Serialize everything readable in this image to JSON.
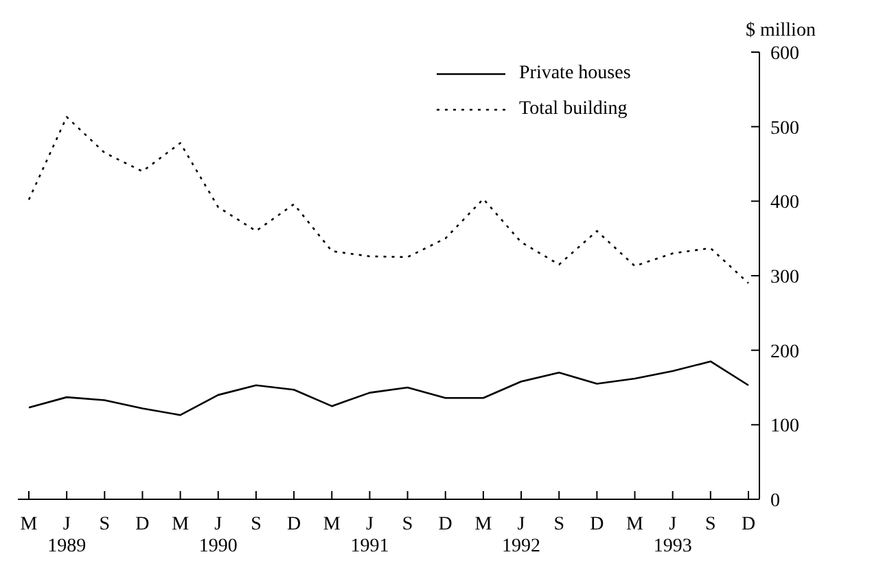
{
  "chart_data": {
    "type": "line",
    "ylabel": "$ million",
    "categories": [
      "M",
      "J\n1989",
      "S",
      "D",
      "M",
      "J\n1990",
      "S",
      "D",
      "M",
      "J\n1991",
      "S",
      "D",
      "M",
      "J\n1992",
      "S",
      "D",
      "M",
      "J\n1993",
      "S",
      "D"
    ],
    "series": [
      {
        "name": "Private houses",
        "color": "#000000",
        "line_style": "solid",
        "values": [
          123,
          137,
          133,
          122,
          113,
          140,
          153,
          147,
          125,
          143,
          150,
          136,
          136,
          158,
          170,
          155,
          162,
          172,
          185,
          153
        ]
      },
      {
        "name": "Total building",
        "color": "#000000",
        "line_style": "dotted",
        "values": [
          402,
          513,
          465,
          440,
          478,
          392,
          360,
          396,
          333,
          326,
          325,
          350,
          403,
          345,
          315,
          360,
          313,
          330,
          337,
          290
        ]
      }
    ],
    "ylim": [
      0,
      600
    ],
    "yticks": [
      0,
      100,
      200,
      300,
      400,
      500,
      600
    ],
    "legend": "top right",
    "marker": "none"
  }
}
